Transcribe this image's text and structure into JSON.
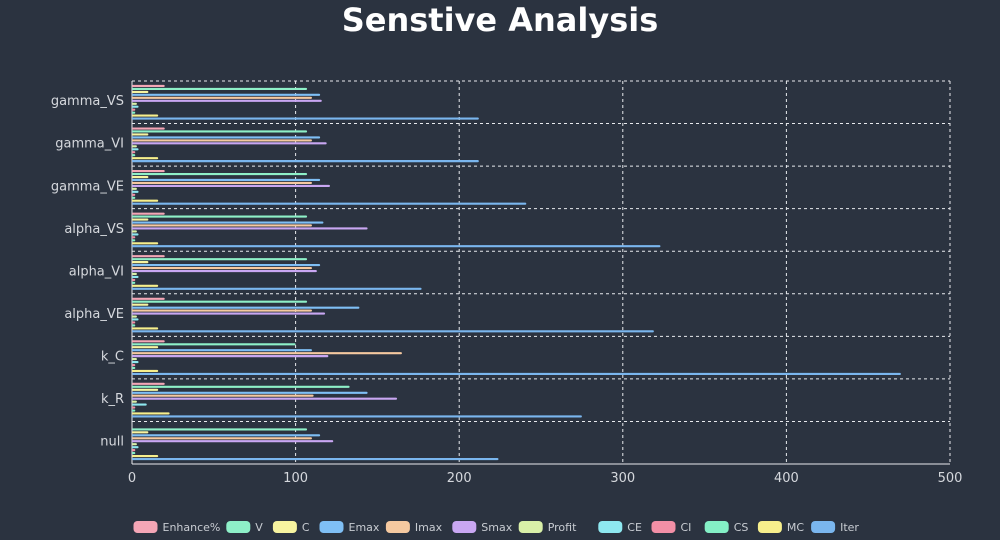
{
  "chart_data": {
    "type": "bar",
    "orientation": "horizontal",
    "title": "Senstive Analysis",
    "categories": [
      "gamma_VS",
      "gamma_VI",
      "gamma_VE",
      "alpha_VS",
      "alpha_VI",
      "alpha_VE",
      "k_C",
      "k_R",
      "null"
    ],
    "x_ticks": [
      0,
      100,
      200,
      300,
      400,
      500
    ],
    "xlim": [
      0,
      500
    ],
    "grid": true,
    "legend_position": "bottom",
    "series": [
      {
        "name": "Enhance%",
        "color": "#f4a6b6",
        "values": [
          20,
          20,
          20,
          20,
          20,
          20,
          20,
          20,
          0
        ]
      },
      {
        "name": "V",
        "color": "#8ef0c8",
        "values": [
          107,
          107,
          107,
          107,
          107,
          107,
          100,
          133,
          107
        ]
      },
      {
        "name": "C",
        "color": "#f7f4a0",
        "values": [
          10,
          10,
          10,
          10,
          10,
          10,
          16,
          16,
          10
        ]
      },
      {
        "name": "Emax",
        "color": "#7fbff5",
        "values": [
          115,
          115,
          115,
          117,
          115,
          139,
          110,
          144,
          115
        ]
      },
      {
        "name": "Imax",
        "color": "#f5c9a0",
        "values": [
          110,
          110,
          110,
          110,
          110,
          110,
          165,
          111,
          110
        ]
      },
      {
        "name": "Smax",
        "color": "#c9a7f2",
        "values": [
          116,
          119,
          121,
          144,
          113,
          118,
          120,
          162,
          123
        ]
      },
      {
        "name": "Profit",
        "color": "#d9f0a8",
        "values": [
          3,
          3,
          3,
          3,
          3,
          3,
          3,
          3,
          3
        ]
      },
      {
        "name": "CE",
        "color": "#8ee8f0",
        "values": [
          4,
          4,
          4,
          4,
          4,
          4,
          4,
          9,
          4
        ]
      },
      {
        "name": "CI",
        "color": "#f28fa6",
        "values": [
          2,
          2,
          2,
          2,
          2,
          2,
          2,
          2,
          2
        ]
      },
      {
        "name": "CS",
        "color": "#84f0c6",
        "values": [
          2,
          2,
          2,
          2,
          2,
          2,
          2,
          2,
          2
        ]
      },
      {
        "name": "MC",
        "color": "#f7ef8c",
        "values": [
          16,
          16,
          16,
          16,
          16,
          16,
          16,
          23,
          16
        ]
      },
      {
        "name": "Iter",
        "color": "#7ab6ee",
        "values": [
          212,
          212,
          241,
          323,
          177,
          319,
          470,
          275,
          224
        ]
      }
    ]
  }
}
